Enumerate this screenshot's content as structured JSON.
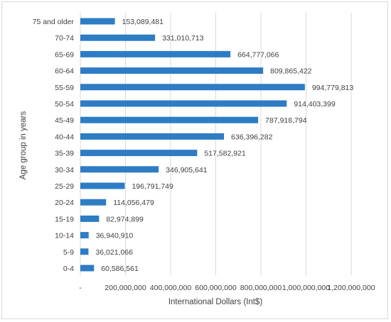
{
  "chart_data": {
    "type": "bar",
    "orientation": "horizontal",
    "categories": [
      "75 and older",
      "70-74",
      "65-69",
      "60-64",
      "55-59",
      "50-54",
      "45-49",
      "40-44",
      "35-39",
      "30-34",
      "25-29",
      "20-24",
      "15-19",
      "10-14",
      "5-9",
      "0-4"
    ],
    "values": [
      153089481,
      331010713,
      664777066,
      809865422,
      994779813,
      914403399,
      787918794,
      636396282,
      517582921,
      346905641,
      196791749,
      114056479,
      82974899,
      36940910,
      36021066,
      60586561
    ],
    "value_labels": [
      "153,089,481",
      "331,010,713",
      "664,777,066",
      "809,865,422",
      "994,779,813",
      "914,403,399",
      "787,918,794",
      "636,396,282",
      "517,582,921",
      "346,905,641",
      "196,791,749",
      "114,056,479",
      "82,974,899",
      "36,940,910",
      "36,021,066",
      "60,586,561"
    ],
    "x_ticks": [
      0,
      200000000,
      400000000,
      600000000,
      800000000,
      1000000000,
      1200000000
    ],
    "x_tick_labels": [
      "-",
      "200,000,000",
      "400,000,000",
      "600,000,000",
      "800,000,000",
      "1,000,000,000",
      "1,200,000,000"
    ],
    "xlim": [
      0,
      1200000000
    ],
    "xlabel": "International Dollars (Int$)",
    "ylabel": "Age group in years",
    "grid": "vertical",
    "legend": "none",
    "bar_color": "#2E7CC4",
    "grid_color": "#d9d9d9"
  }
}
